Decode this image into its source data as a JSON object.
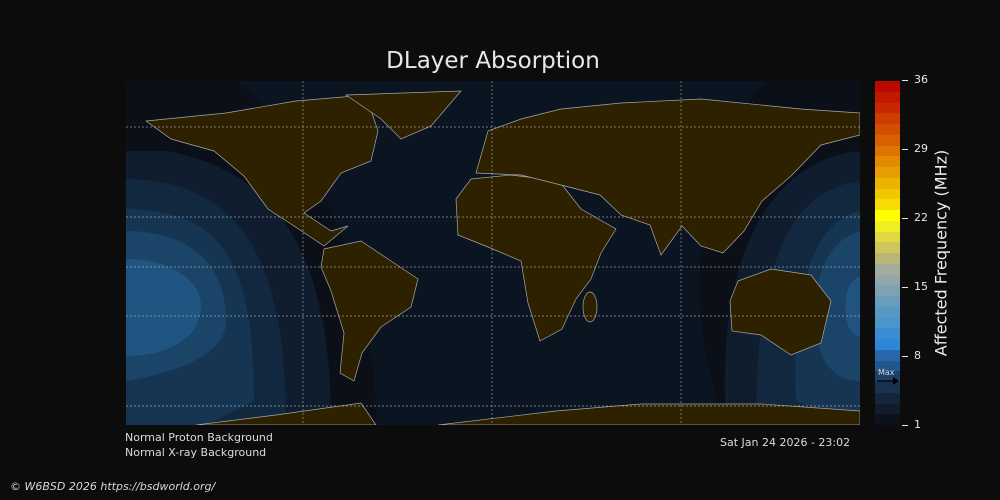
{
  "title": "DLayer Absorption",
  "colorbar": {
    "label": "Affected Frequency (MHz)",
    "ticks": [
      "36",
      "29",
      "22",
      "15",
      "8",
      "1"
    ],
    "min": 1,
    "max": 36,
    "max_marker_label": "Max",
    "max_marker_value": 5.5,
    "colors_bottom_to_top": [
      "#0d111c",
      "#111c2b",
      "#15263a",
      "#19324f",
      "#1d4266",
      "#21578a",
      "#2868a8",
      "#2d86d6",
      "#3a8fd2",
      "#4a95cc",
      "#5798c4",
      "#6a9cbb",
      "#7fa2b2",
      "#94a6a8",
      "#a4ab98",
      "#b8b577",
      "#cfc65a",
      "#e0d944",
      "#eeee22",
      "#ffff00",
      "#f6dc00",
      "#f0c800",
      "#ebb400",
      "#e69e00",
      "#e28a00",
      "#de7400",
      "#d96200",
      "#d44e00",
      "#cf3c00",
      "#c82800",
      "#c21800",
      "#bb0800"
    ]
  },
  "map": {
    "land_color": "#2e2100",
    "ocean_color": "#0b1421",
    "absorption_shades": [
      "#0f1d2e",
      "#12283e",
      "#163552",
      "#1a4468",
      "#1f5580"
    ]
  },
  "status": {
    "proton": "Normal Proton Background",
    "xray": "Normal X-ray Background",
    "timestamp": "Sat Jan 24 2026 - 23:02"
  },
  "footer": "© W6BSD 2026 https://bsdworld.org/"
}
